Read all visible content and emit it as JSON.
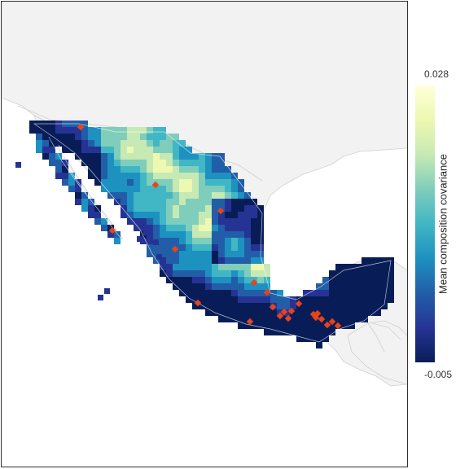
{
  "legend": {
    "title": "Mean composition covariance",
    "max_label": "0.028",
    "min_label": "-0.005",
    "max_value": 0.028,
    "min_value": -0.005,
    "colors": [
      "#081d58",
      "#253494",
      "#225ea8",
      "#1d91c0",
      "#41b6c4",
      "#7fcdbb",
      "#c7e9b4",
      "#edf8b1",
      "#ffffd9"
    ]
  },
  "map": {
    "land_color": "#f2f2f2",
    "land_outline": "#d0d0d0",
    "site_color": "#e8431a",
    "site_count": 28
  }
}
